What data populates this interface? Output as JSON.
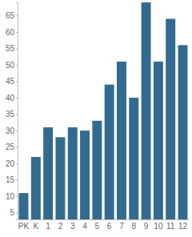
{
  "chart_data": {
    "type": "bar",
    "categories": [
      "PK",
      "K",
      "1",
      "2",
      "3",
      "4",
      "5",
      "6",
      "7",
      "8",
      "9",
      "10",
      "11",
      "12"
    ],
    "values": [
      11,
      22,
      31,
      28,
      31,
      30,
      33,
      44,
      51,
      40,
      69,
      51,
      64,
      56
    ],
    "color": "#336a90",
    "ylim": [
      3,
      69
    ],
    "yticks": [
      5,
      10,
      15,
      20,
      25,
      30,
      35,
      40,
      45,
      50,
      55,
      60,
      65
    ],
    "grid": false
  }
}
